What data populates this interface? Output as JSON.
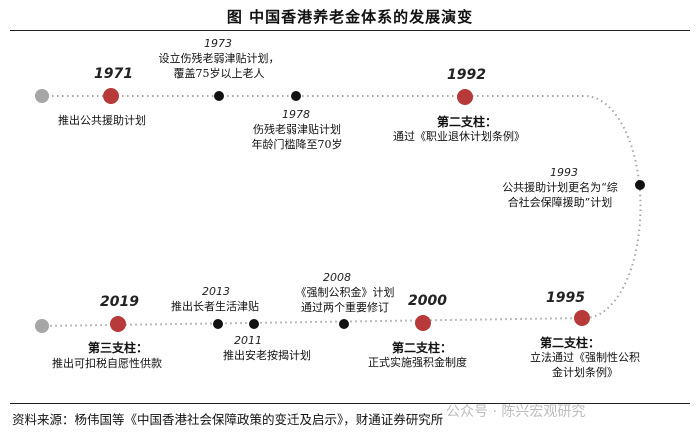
{
  "title": "图  中国香港养老金体系的发展演变",
  "events": {
    "e1971": {
      "year": "1971",
      "text": "推出公共援助计划"
    },
    "e1973": {
      "year": "1973",
      "text": [
        "设立伤残老弱津贴计划，",
        "覆盖75岁以上老人"
      ]
    },
    "e1978": {
      "year": "1978",
      "text": [
        "伤残老弱津贴计划",
        "年龄门槛降至70岁"
      ]
    },
    "e1992": {
      "year": "1992",
      "heading": "第二支柱：",
      "text": "通过《职业退休计划条例》"
    },
    "e1993": {
      "year": "1993",
      "text": [
        "公共援助计划更名为“综",
        "合社会保障援助”计划"
      ]
    },
    "e1995": {
      "year": "1995",
      "heading": "第二支柱：",
      "text": [
        "立法通过《强制性公积",
        "金计划条例》"
      ]
    },
    "e2000": {
      "year": "2000",
      "heading": "第二支柱：",
      "text": "正式实施强积金制度"
    },
    "e2008": {
      "year": "2008",
      "text": [
        "《强制公积金》计划",
        "通过两个重要修订"
      ]
    },
    "e2011": {
      "year": "2011",
      "text": "推出安老按揭计划"
    },
    "e2013": {
      "year": "2013",
      "text": "推出长者生活津贴"
    },
    "e2019": {
      "year": "2019",
      "heading": "第三支柱：",
      "text": "推出可扣税自愿性供款"
    }
  },
  "source": "资料来源：杨伟国等《中国香港社会保障政策的变迁及启示》，财通证券研究所",
  "watermark": "公众号 · 陈兴宏观研究",
  "colors": {
    "major_dot": "#b8393a",
    "minor_dot": "#111111",
    "start_dot": "#a6a6a6",
    "path": "#a6a6a6"
  }
}
